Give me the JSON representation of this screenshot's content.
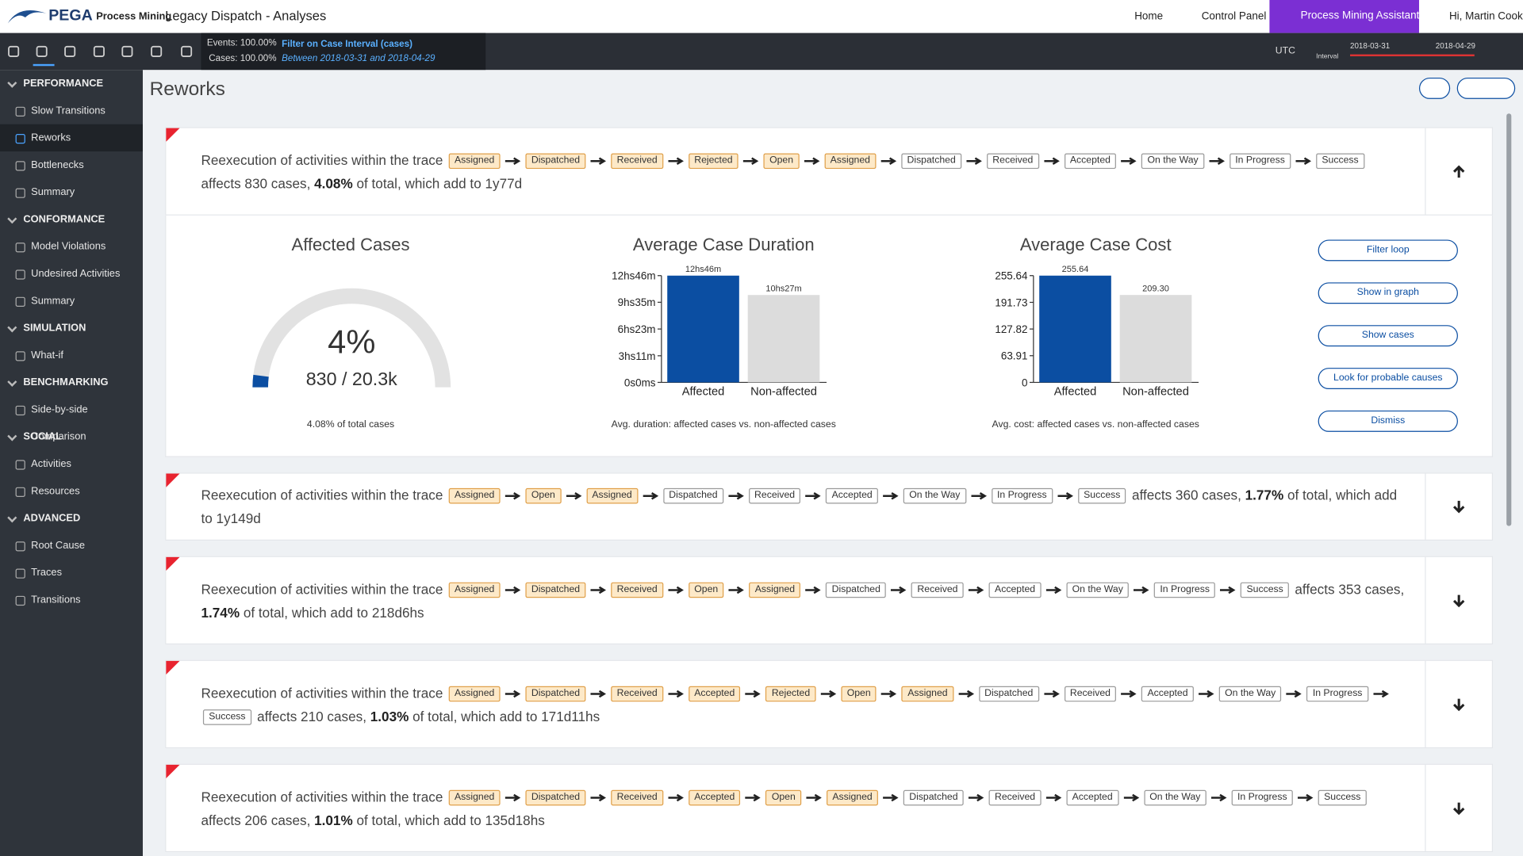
{
  "header": {
    "brand": "PEGA",
    "product": "Process Mining",
    "title": "Legacy Dispatch - Analyses",
    "nav": [
      "Home",
      "Control Panel"
    ],
    "assistant": "Process Mining Assistant",
    "user": "Hi, Martin Cook"
  },
  "toolbar": {
    "events": "Events: 100.00%",
    "cases": "Cases: 100.00%",
    "filter_title": "Filter on Case Interval (cases)",
    "filter_detail": "Between 2018-03-31 and 2018-04-29",
    "timezone": "UTC",
    "interval_label": "Interval",
    "interval_start": "2018-03-31",
    "interval_end": "2018-04-29"
  },
  "sidebar": [
    {
      "title": "PERFORMANCE",
      "items": [
        "Slow Transitions",
        "Reworks",
        "Bottlenecks",
        "Summary"
      ]
    },
    {
      "title": "CONFORMANCE",
      "items": [
        "Model Violations",
        "Undesired Activities",
        "Summary"
      ]
    },
    {
      "title": "SIMULATION",
      "items": [
        "What-if"
      ]
    },
    {
      "title": "BENCHMARKING",
      "items": [
        "Side-by-side Comparison"
      ]
    },
    {
      "title": "SOCIAL",
      "items": [
        "Activities",
        "Resources"
      ]
    },
    {
      "title": "ADVANCED",
      "items": [
        "Root Cause",
        "Traces",
        "Transitions"
      ]
    }
  ],
  "sidebar_active": [
    0,
    1
  ],
  "page_title": "Reworks",
  "reworks": [
    {
      "intro": "Reexecution of activities within the trace",
      "expanded": true,
      "steps": [
        {
          "label": "Assigned",
          "rework": true
        },
        {
          "label": "Dispatched",
          "rework": true
        },
        {
          "label": "Received",
          "rework": true
        },
        {
          "label": "Rejected",
          "rework": true
        },
        {
          "label": "Open",
          "rework": true
        },
        {
          "label": "Assigned",
          "rework": true
        },
        {
          "label": "Dispatched",
          "rework": false
        },
        {
          "label": "Received",
          "rework": false
        },
        {
          "label": "Accepted",
          "rework": false
        },
        {
          "label": "On the Way",
          "rework": false
        },
        {
          "label": "In Progress",
          "rework": false
        },
        {
          "label": "Success",
          "rework": false
        }
      ],
      "affects": "affects 830 cases,",
      "share": "4.08%",
      "rest": "of total, which add to 1y77d"
    },
    {
      "intro": "Reexecution of activities within the trace",
      "expanded": false,
      "steps": [
        {
          "label": "Assigned",
          "rework": true
        },
        {
          "label": "Open",
          "rework": true
        },
        {
          "label": "Assigned",
          "rework": true
        },
        {
          "label": "Dispatched",
          "rework": false
        },
        {
          "label": "Received",
          "rework": false
        },
        {
          "label": "Accepted",
          "rework": false
        },
        {
          "label": "On the Way",
          "rework": false
        },
        {
          "label": "In Progress",
          "rework": false
        },
        {
          "label": "Success",
          "rework": false
        }
      ],
      "affects": "affects 360 cases,",
      "share": "1.77%",
      "rest": "of total, which add to 1y149d"
    },
    {
      "intro": "Reexecution of activities within the trace",
      "expanded": false,
      "steps": [
        {
          "label": "Assigned",
          "rework": true
        },
        {
          "label": "Dispatched",
          "rework": true
        },
        {
          "label": "Received",
          "rework": true
        },
        {
          "label": "Open",
          "rework": true
        },
        {
          "label": "Assigned",
          "rework": true
        },
        {
          "label": "Dispatched",
          "rework": false
        },
        {
          "label": "Received",
          "rework": false
        },
        {
          "label": "Accepted",
          "rework": false
        },
        {
          "label": "On the Way",
          "rework": false
        },
        {
          "label": "In Progress",
          "rework": false
        },
        {
          "label": "Success",
          "rework": false
        }
      ],
      "affects": "affects 353 cases,",
      "share": "1.74%",
      "rest": "of total, which add to 218d6hs"
    },
    {
      "intro": "Reexecution of activities within the trace",
      "expanded": false,
      "steps": [
        {
          "label": "Assigned",
          "rework": true
        },
        {
          "label": "Dispatched",
          "rework": true
        },
        {
          "label": "Received",
          "rework": true
        },
        {
          "label": "Accepted",
          "rework": true
        },
        {
          "label": "Rejected",
          "rework": true
        },
        {
          "label": "Open",
          "rework": true
        },
        {
          "label": "Assigned",
          "rework": true
        },
        {
          "label": "Dispatched",
          "rework": false
        },
        {
          "label": "Received",
          "rework": false
        },
        {
          "label": "Accepted",
          "rework": false
        },
        {
          "label": "On the Way",
          "rework": false
        },
        {
          "label": "In Progress",
          "rework": false
        },
        {
          "label": "Success",
          "rework": false
        }
      ],
      "affects": "affects 210 cases,",
      "share": "1.03%",
      "rest": "of total, which add to 171d11hs"
    },
    {
      "intro": "Reexecution of activities within the trace",
      "expanded": false,
      "steps": [
        {
          "label": "Assigned",
          "rework": true
        },
        {
          "label": "Dispatched",
          "rework": true
        },
        {
          "label": "Received",
          "rework": true
        },
        {
          "label": "Accepted",
          "rework": true
        },
        {
          "label": "Open",
          "rework": true
        },
        {
          "label": "Assigned",
          "rework": true
        },
        {
          "label": "Dispatched",
          "rework": false
        },
        {
          "label": "Received",
          "rework": false
        },
        {
          "label": "Accepted",
          "rework": false
        },
        {
          "label": "On the Way",
          "rework": false
        },
        {
          "label": "In Progress",
          "rework": false
        },
        {
          "label": "Success",
          "rework": false
        }
      ],
      "affects": "affects 206 cases,",
      "share": "1.01%",
      "rest": "of total, which add to 135d18hs"
    }
  ],
  "detail": {
    "gauge": {
      "title": "Affected Cases",
      "value": 4,
      "value_label": "4%",
      "ratio": "830 / 20.3k",
      "caption": "4.08% of total cases",
      "color": "#0b4ea2"
    },
    "duration": {
      "type": "bar",
      "title": "Average Case Duration",
      "categories": [
        "Affected",
        "Non-affected"
      ],
      "values": [
        766,
        627
      ],
      "value_labels": [
        "12hs46m",
        "10hs27m"
      ],
      "colors": [
        "#0b4ea2",
        "#dcdcdc"
      ],
      "ylim": [
        0,
        766
      ],
      "yticks": [
        {
          "value": 0,
          "label": "0s0ms"
        },
        {
          "value": 191,
          "label": "3hs11m"
        },
        {
          "value": 383,
          "label": "6hs23m"
        },
        {
          "value": 575,
          "label": "9hs35m"
        },
        {
          "value": 766,
          "label": "12hs46m"
        }
      ],
      "caption": "Avg. duration: affected cases vs. non-affected cases"
    },
    "cost": {
      "type": "bar",
      "title": "Average Case Cost",
      "categories": [
        "Affected",
        "Non-affected"
      ],
      "values": [
        255.64,
        209.3
      ],
      "value_labels": [
        "255.64",
        "209.30"
      ],
      "colors": [
        "#0b4ea2",
        "#dcdcdc"
      ],
      "ylim": [
        0,
        255.64
      ],
      "yticks": [
        0,
        63.91,
        127.82,
        191.73,
        255.64
      ],
      "caption": "Avg. cost: affected cases vs. non-affected cases"
    },
    "buttons": [
      "Filter loop",
      "Show in graph",
      "Show cases",
      "Look for probable causes",
      "Dismiss"
    ]
  }
}
